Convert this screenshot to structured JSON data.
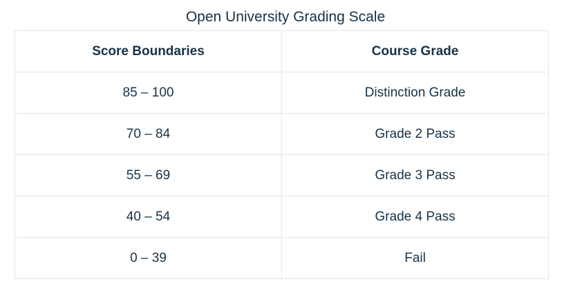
{
  "title": "Open University Grading Scale",
  "table": {
    "headers": [
      "Score Boundaries",
      "Course Grade"
    ],
    "rows": [
      {
        "score": "85 – 100",
        "grade": "Distinction Grade"
      },
      {
        "score": "70 – 84",
        "grade": "Grade 2 Pass"
      },
      {
        "score": "55 – 69",
        "grade": "Grade 3 Pass"
      },
      {
        "score": "40 – 54",
        "grade": "Grade 4 Pass"
      },
      {
        "score": "0 – 39",
        "grade": "Fail"
      }
    ]
  },
  "colors": {
    "text": "#163247",
    "border": "#e3e5e7",
    "background": "#ffffff"
  }
}
